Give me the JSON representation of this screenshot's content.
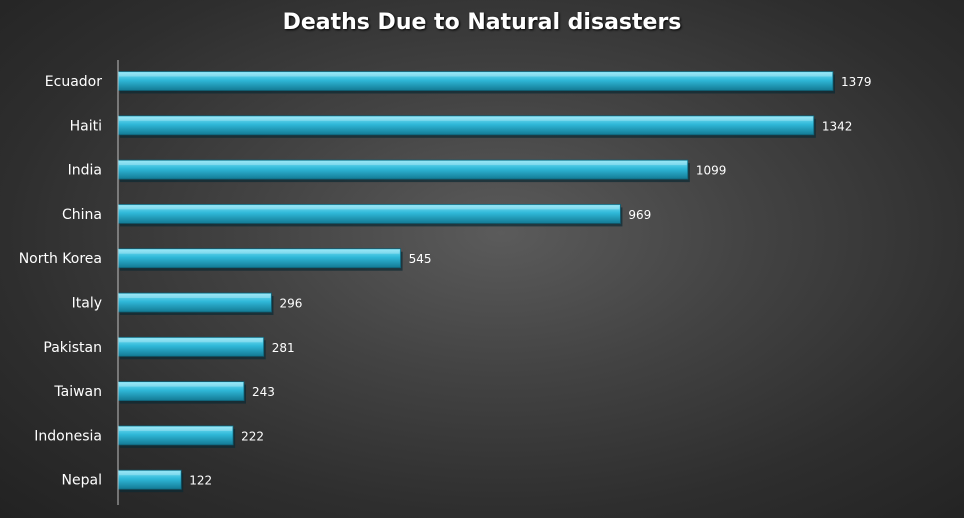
{
  "chart_data": {
    "type": "bar",
    "orientation": "horizontal",
    "title": "Deaths Due to Natural disasters",
    "xlabel": "",
    "ylabel": "",
    "categories": [
      "Ecuador",
      "Haiti",
      "India",
      "China",
      "North Korea",
      "Italy",
      "Pakistan",
      "Taiwan",
      "Indonesia",
      "Nepal"
    ],
    "values": [
      1379,
      1342,
      1099,
      969,
      545,
      296,
      281,
      243,
      222,
      122
    ],
    "xlim": [
      0,
      1379
    ],
    "grid": false,
    "legend": "none",
    "data_labels": true,
    "colors": {
      "bar_light": "#7fe3f7",
      "bar": "#2fb8d8",
      "bar_dark": "#137a94",
      "bar_edge": "#0f5f74",
      "label": "#ffffff",
      "axis": "#bfbfbf"
    }
  }
}
